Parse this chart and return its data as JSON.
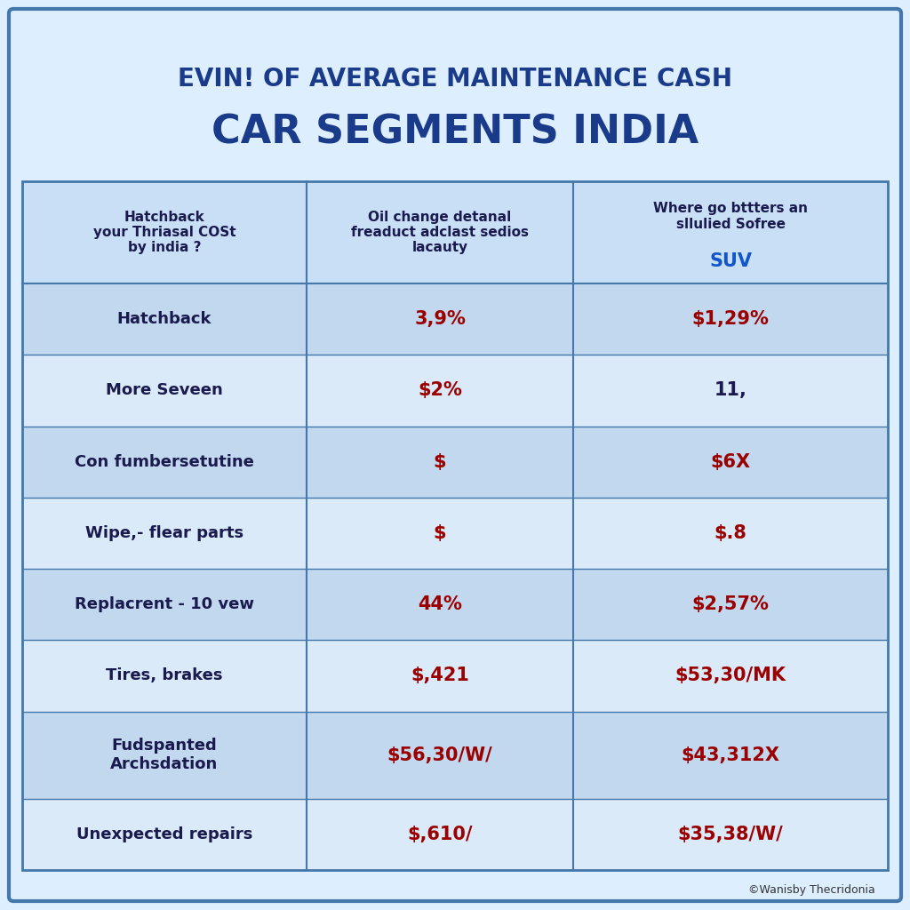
{
  "title_line1": "EVIN! OF AVERAGE MAINTENANCE CASH",
  "title_line2": "CAR SEGMENTS INDIA",
  "bg_color": "#ddeeff",
  "header_bg": "#c8dff5",
  "row_bg_dark": "#c2d8ee",
  "row_bg_light": "#daeaf8",
  "col_headers": [
    "Hatchback\nyour Thriasal COSt\nby india ?",
    "Oil change detanal\nfreaduct adclast sedios\nlacauty",
    "Where go bttters an\nsllulied Sofree\nSUV"
  ],
  "rows": [
    [
      "Hatchback",
      "3,9%",
      "$1,29%"
    ],
    [
      "More Seveen",
      "$2%",
      "11,"
    ],
    [
      "Con fumbersetutine",
      "$",
      "$6X"
    ],
    [
      "Wipe,- flear parts",
      "$",
      "$.8"
    ],
    [
      "Replacrent - 10 vew",
      "44%",
      "$2,57%"
    ],
    [
      "Tires, brakes",
      "$,421",
      "$53,30/MK"
    ],
    [
      "Fudspanted\nArchsdation",
      "$56,30/W/",
      "$43,312X"
    ],
    [
      "Unexpected repairs",
      "$,610/",
      "$35,38/W/"
    ]
  ],
  "col1_color": "#1a1a4e",
  "col2_color": "#9b0000",
  "col3_color": "#9b0000",
  "suv_color": "#1155cc",
  "title1_color": "#1a3a8a",
  "title2_color": "#1a3a8a",
  "watermark": "©Wanisby Thecridonia",
  "border_color": "#4477aa"
}
